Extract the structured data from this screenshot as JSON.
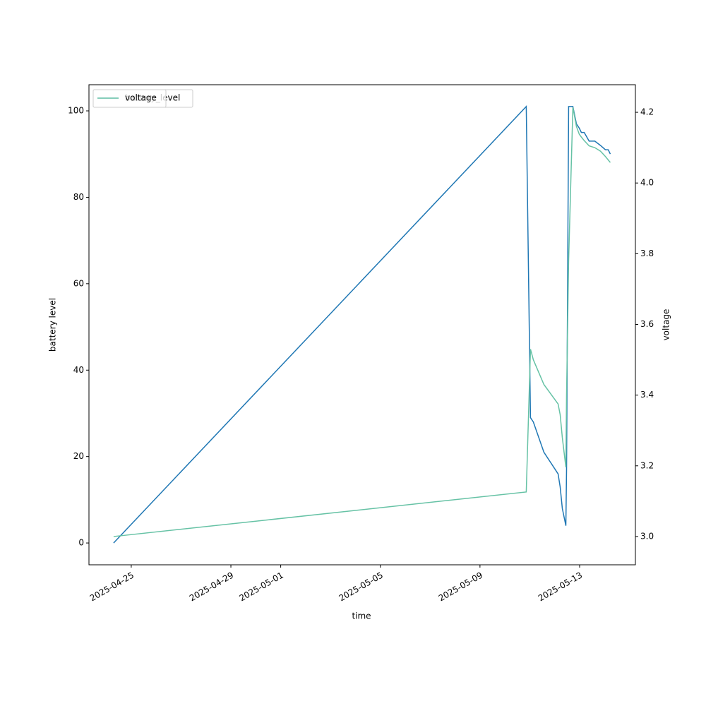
{
  "chart_data": {
    "type": "line",
    "xlabel": "time",
    "ylabel": "battery level",
    "y2label": "voltage",
    "x": [
      "2025-04-24T07:00",
      "2025-05-10T20:35",
      "2025-05-11T00:40",
      "2025-05-11T03:25",
      "2025-05-11T13:35",
      "2025-05-12T03:15",
      "2025-05-12T05:15",
      "2025-05-12T07:20",
      "2025-05-12T10:45",
      "2025-05-12T11:25",
      "2025-05-12T13:25",
      "2025-05-12T17:30",
      "2025-05-12T20:55",
      "2025-05-12T23:40",
      "2025-05-13T01:40",
      "2025-05-13T04:25",
      "2025-05-13T09:10",
      "2025-05-13T14:40",
      "2025-05-13T20:05",
      "2025-05-14T00:50",
      "2025-05-14T03:35",
      "2025-05-14T05:35"
    ],
    "series": [
      {
        "name": "battery_level",
        "color": "#1f77b4",
        "axis": "y",
        "values": [
          0,
          101,
          29,
          28,
          21,
          16,
          13,
          8,
          4,
          17,
          101,
          101,
          97,
          96,
          95,
          95,
          93,
          93,
          92,
          91,
          91,
          90
        ]
      },
      {
        "name": "voltage",
        "color": "#66c2a5",
        "axis": "y2",
        "values": [
          3.0,
          3.126,
          3.53,
          3.5,
          3.43,
          3.375,
          3.345,
          3.28,
          3.196,
          3.4,
          3.78,
          4.214,
          4.16,
          4.138,
          4.13,
          4.12,
          4.105,
          4.1,
          4.09,
          4.075,
          4.065,
          4.058
        ]
      }
    ],
    "xlim": [
      "2025-04-23T07:15",
      "2025-05-15T05:45"
    ],
    "xticks": [
      "2025-04-25",
      "2025-04-29",
      "2025-05-01",
      "2025-05-05",
      "2025-05-09",
      "2025-05-13"
    ],
    "ylim": [
      -5.05,
      106.05
    ],
    "yticks": [
      0,
      20,
      40,
      60,
      80,
      100
    ],
    "y2lim": [
      2.92,
      4.278
    ],
    "y2ticks": [
      {
        "value": 3,
        "label": "3.0"
      },
      3.2,
      3.4,
      3.6,
      3.8,
      {
        "value": 4,
        "label": "4.0"
      },
      4.2
    ],
    "legend": "upper left"
  }
}
